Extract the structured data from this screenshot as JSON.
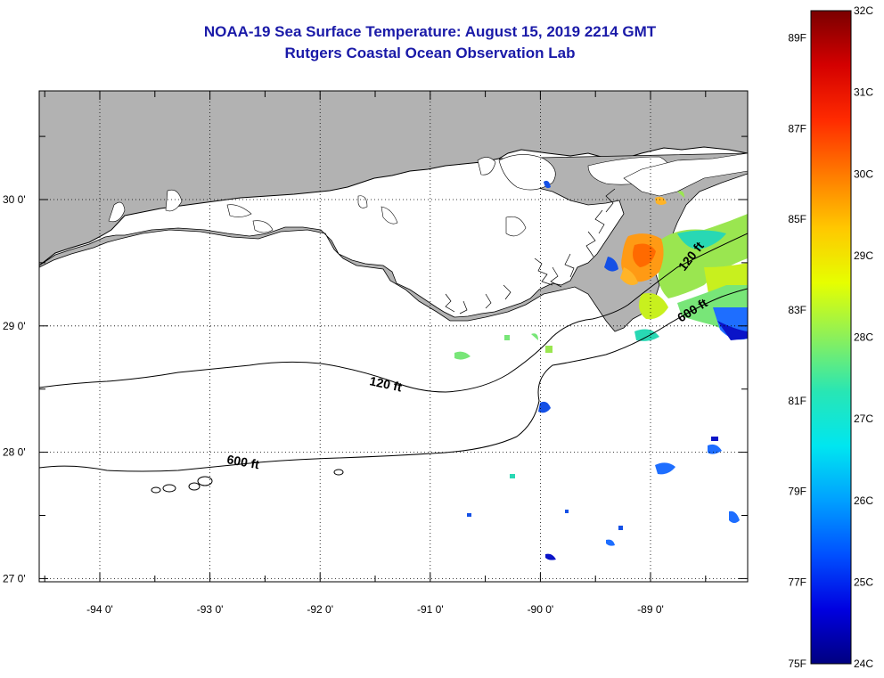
{
  "title_line1": "NOAA-19 Sea Surface Temperature:  August 15, 2019 2214 GMT",
  "title_line2": "Rutgers Coastal Ocean Observation Lab",
  "map": {
    "lon_ticks": [
      {
        "value": -94,
        "label": "-94 0'"
      },
      {
        "value": -93,
        "label": "-93 0'"
      },
      {
        "value": -92,
        "label": "-92 0'"
      },
      {
        "value": -91,
        "label": "-91 0'"
      },
      {
        "value": -90,
        "label": "-90 0'"
      },
      {
        "value": -89,
        "label": "-89 0'"
      }
    ],
    "lat_ticks": [
      {
        "value": 30,
        "label": "30 0'"
      },
      {
        "value": 29,
        "label": "29 0'"
      },
      {
        "value": 28,
        "label": "28 0'"
      },
      {
        "value": 27,
        "label": "27 0'"
      }
    ],
    "contour_labels": {
      "c120_west": "120 ft",
      "c120_east": "120 ft",
      "c600_west": "600 ft",
      "c600_east": "600 ft"
    }
  },
  "colorbar": {
    "fahrenheit_labels": [
      "89F",
      "87F",
      "85F",
      "83F",
      "81F",
      "79F",
      "77F",
      "75F"
    ],
    "celsius_labels": [
      "32C",
      "31C",
      "30C",
      "29C",
      "28C",
      "27C",
      "26C",
      "25C",
      "24C"
    ],
    "colors": [
      "#7a0000",
      "#d40000",
      "#ff2a00",
      "#ff7a00",
      "#ffc800",
      "#e6ff00",
      "#8cf05a",
      "#28e6b4",
      "#00e6f0",
      "#00a0ff",
      "#0050ff",
      "#0000e0",
      "#000080"
    ]
  },
  "colors": {
    "land": "#b2b2b2",
    "title": "#1a1aa8"
  }
}
